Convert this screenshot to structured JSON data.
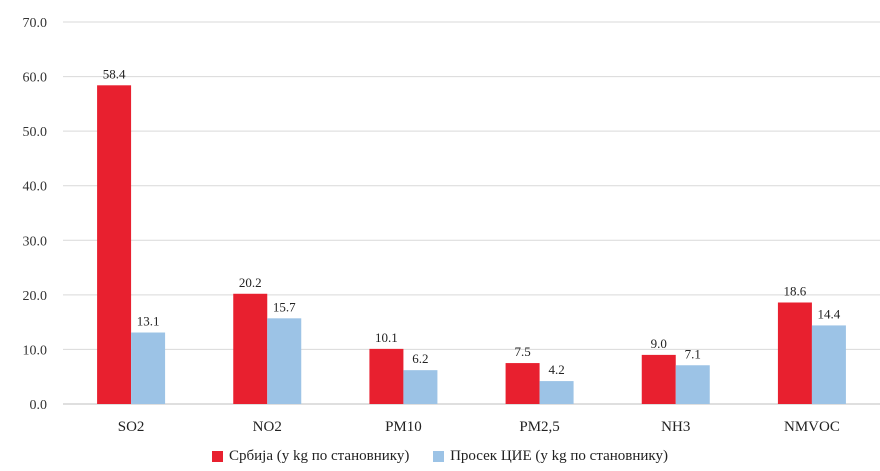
{
  "chart_data": {
    "type": "bar",
    "categories": [
      "SO2",
      "NO2",
      "PM10",
      "PM2,5",
      "NH3",
      "NMVOC"
    ],
    "series": [
      {
        "name": "Србија (у kg по становнику)",
        "color": "#e8202f",
        "values": [
          58.4,
          20.2,
          10.1,
          7.5,
          9.0,
          18.6
        ],
        "labels": [
          "58.4",
          "20.2",
          "10.1",
          "7.5",
          "9.0",
          "18.6"
        ]
      },
      {
        "name": "Просек ЦИЕ (у kg по становнику)",
        "color": "#9cc3e6",
        "values": [
          13.1,
          15.7,
          6.2,
          4.2,
          7.1,
          14.4
        ],
        "labels": [
          "13.1",
          "15.7",
          "6.2",
          "4.2",
          "7.1",
          "14.4"
        ]
      }
    ],
    "ylim": [
      0,
      70
    ],
    "yticks": [
      "0.0",
      "10.0",
      "20.0",
      "30.0",
      "40.0",
      "50.0",
      "60.0",
      "70.0"
    ],
    "grid": true,
    "legend": "bottom"
  }
}
